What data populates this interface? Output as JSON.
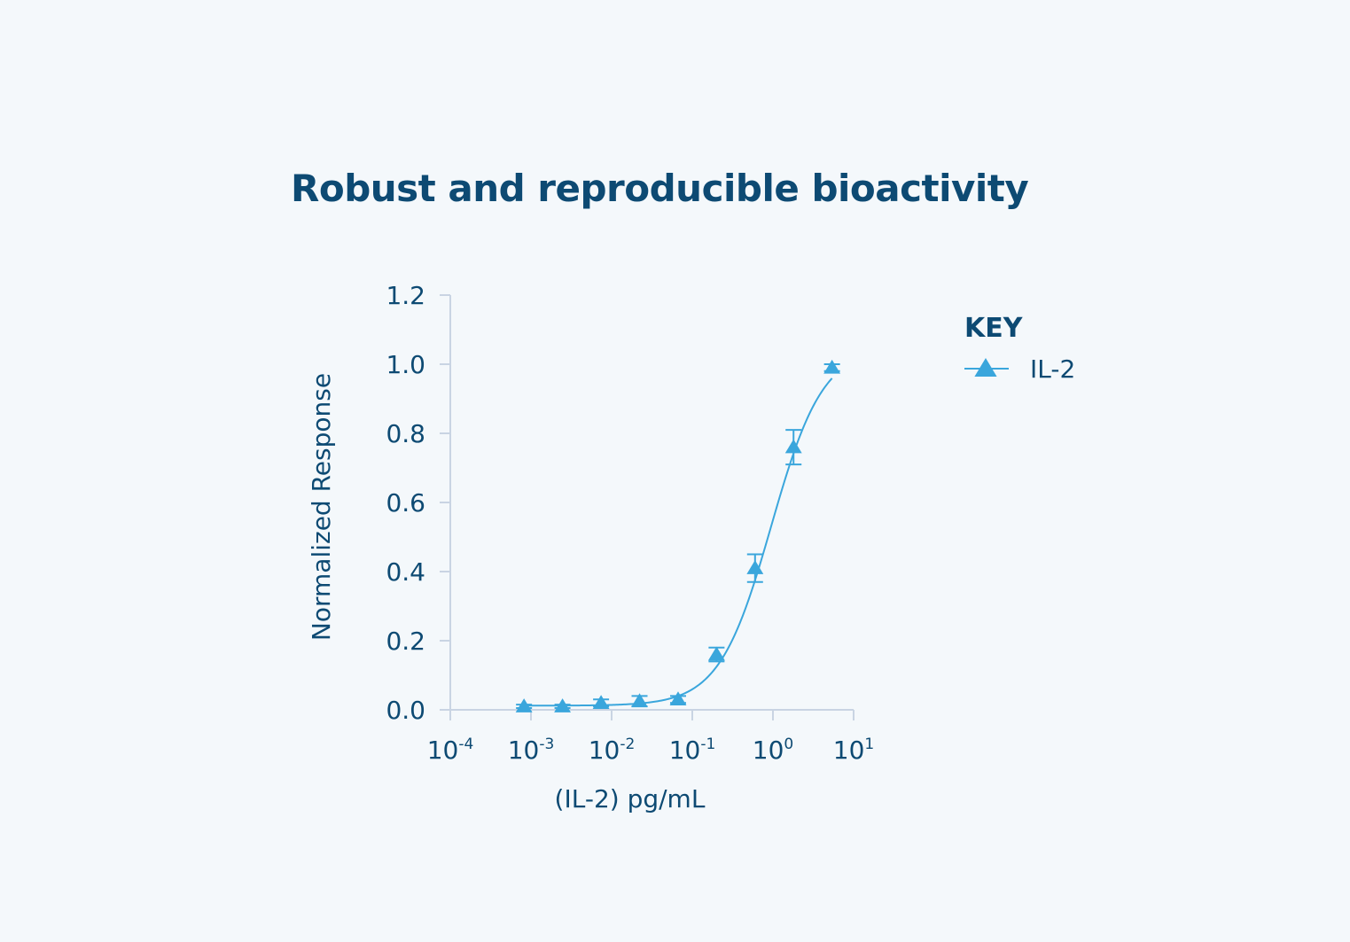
{
  "title": "Robust and reproducible bioactivity",
  "chart_data": {
    "type": "scatter",
    "xlabel": "(IL-2) pg/mL",
    "ylabel": "Normalized Response",
    "xscale": "log",
    "xlim": [
      0.0001,
      10
    ],
    "ylim": [
      0,
      1.2
    ],
    "x_ticks": [
      {
        "base": "10",
        "exp": "-4"
      },
      {
        "base": "10",
        "exp": "-3"
      },
      {
        "base": "10",
        "exp": "-2"
      },
      {
        "base": "10",
        "exp": "-1"
      },
      {
        "base": "10",
        "exp": "0"
      },
      {
        "base": "10",
        "exp": "1"
      }
    ],
    "y_ticks": [
      "0.0",
      "0.2",
      "0.4",
      "0.6",
      "0.8",
      "1.0",
      "1.2"
    ],
    "grid": false,
    "legend": {
      "title": "KEY",
      "position": "right"
    },
    "series": [
      {
        "name": "IL-2",
        "color": "#3aa6dc",
        "marker": "triangle",
        "x": [
          0.00082,
          0.00246,
          0.0074,
          0.0222,
          0.0667,
          0.2,
          0.6,
          1.8,
          5.4
        ],
        "y": [
          0.01,
          0.01,
          0.02,
          0.025,
          0.03,
          0.16,
          0.41,
          0.76,
          0.99
        ],
        "error": [
          0.005,
          0.005,
          0.01,
          0.015,
          0.01,
          0.02,
          0.04,
          0.05,
          0.01
        ]
      }
    ],
    "fit_curve": {
      "type": "4PL",
      "bottom": 0.012,
      "top": 1.05,
      "ec50": 0.95,
      "hill": 1.35
    }
  }
}
